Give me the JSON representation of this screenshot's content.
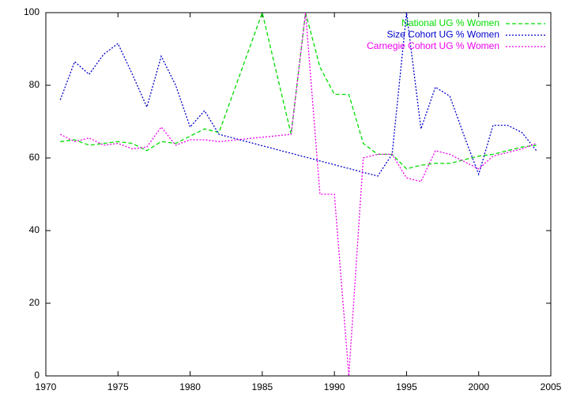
{
  "chart_data": {
    "type": "line",
    "xlim": [
      1970,
      2005
    ],
    "xticks": [
      1970,
      1975,
      1980,
      1985,
      1990,
      1995,
      2000,
      2005
    ],
    "ylim": [
      0,
      100
    ],
    "yticks": [
      0,
      20,
      40,
      60,
      80,
      100
    ],
    "legend": "top-right",
    "series": [
      {
        "name": "National UG % Women",
        "color": "#00dd00",
        "line_style": "dashed",
        "x": [
          1971,
          1972,
          1973,
          1974,
          1975,
          1976,
          1977,
          1978,
          1979,
          1980,
          1981,
          1982,
          1985,
          1987,
          1988,
          1989,
          1990,
          1991,
          1992,
          1993,
          1994,
          1995,
          1996,
          1997,
          1998,
          1999,
          2000,
          2001,
          2002,
          2003,
          2004
        ],
        "values": [
          64.5,
          65,
          63.5,
          64,
          64.5,
          64,
          62,
          64.5,
          64,
          66,
          68,
          67,
          100,
          66.5,
          100,
          85,
          77.5,
          77.5,
          64,
          61,
          61,
          57,
          58,
          58.5,
          58.5,
          59.5,
          60.5,
          61,
          62,
          63,
          63.5
        ]
      },
      {
        "name": "Size Cohort UG % Women",
        "color": "#0000cc",
        "line_style": "dotted",
        "x": [
          1971,
          1972,
          1973,
          1974,
          1975,
          1976,
          1977,
          1978,
          1979,
          1980,
          1981,
          1982,
          1993,
          1994,
          1995,
          1996,
          1997,
          1998,
          1999,
          2000,
          2001,
          2002,
          2003,
          2004
        ],
        "values": [
          76,
          86.5,
          83,
          88.5,
          91.5,
          83,
          74,
          88,
          80,
          68.5,
          73,
          66.5,
          55,
          61,
          100,
          68,
          79.5,
          77,
          66,
          55.5,
          69,
          69,
          67,
          62
        ]
      },
      {
        "name": "Carnegie Cohort UG % Women",
        "color": "#ee00ee",
        "line_style": "dotted",
        "x": [
          1971,
          1972,
          1973,
          1974,
          1975,
          1976,
          1977,
          1978,
          1979,
          1980,
          1981,
          1982,
          1987,
          1988,
          1989,
          1990,
          1991,
          1992,
          1993,
          1994,
          1995,
          1996,
          1997,
          1998,
          1999,
          2000,
          2001,
          2002,
          2003,
          2004
        ],
        "values": [
          66.5,
          64.5,
          65.5,
          63.5,
          64,
          62.5,
          63,
          68.5,
          63.5,
          65,
          65,
          64.5,
          66.5,
          100,
          50,
          50,
          0,
          60,
          61,
          61,
          54.5,
          53.5,
          62,
          61,
          59,
          57,
          60.5,
          61.5,
          62.5,
          64
        ]
      }
    ]
  }
}
